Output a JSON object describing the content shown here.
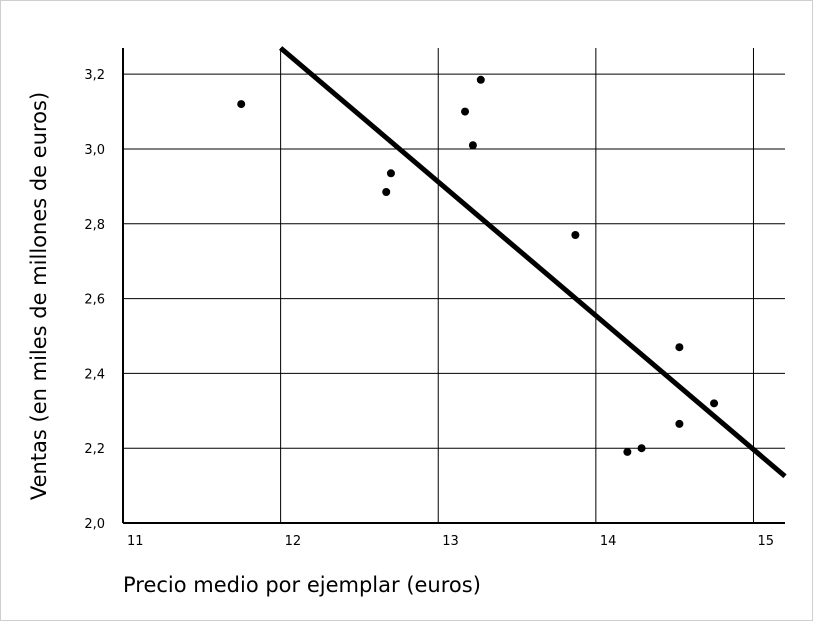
{
  "chart_data": {
    "type": "scatter",
    "title": "",
    "xlabel": "Precio medio por ejemplar (euros)",
    "ylabel": "Ventas (en miles de millones de euros)",
    "xlim": [
      11,
      15.2
    ],
    "ylim": [
      2.0,
      3.27
    ],
    "x_ticks": [
      11,
      12,
      13,
      14,
      15
    ],
    "x_tick_labels": [
      "11",
      "12",
      "13",
      "14",
      "15"
    ],
    "y_ticks": [
      2.0,
      2.2,
      2.4,
      2.6,
      2.8,
      3.0,
      3.2
    ],
    "y_tick_labels": [
      "2,0",
      "2,2",
      "2,4",
      "2,6",
      "2,8",
      "3,0",
      "3,2"
    ],
    "grid": true,
    "colors": {
      "points": "#000000",
      "line": "#000000",
      "grid": "#000000"
    },
    "series": [
      {
        "type": "scatter",
        "points": [
          {
            "x": 11.75,
            "y": 3.12
          },
          {
            "x": 12.67,
            "y": 2.885
          },
          {
            "x": 12.7,
            "y": 2.935
          },
          {
            "x": 13.17,
            "y": 3.1
          },
          {
            "x": 13.22,
            "y": 3.01
          },
          {
            "x": 13.27,
            "y": 3.185
          },
          {
            "x": 13.87,
            "y": 2.77
          },
          {
            "x": 14.2,
            "y": 2.19
          },
          {
            "x": 14.29,
            "y": 2.2
          },
          {
            "x": 14.53,
            "y": 2.265
          },
          {
            "x": 14.53,
            "y": 2.47
          },
          {
            "x": 14.75,
            "y": 2.32
          }
        ]
      },
      {
        "type": "line",
        "points": [
          {
            "x": 12.0,
            "y": 3.27
          },
          {
            "x": 15.2,
            "y": 2.125
          }
        ]
      }
    ]
  }
}
